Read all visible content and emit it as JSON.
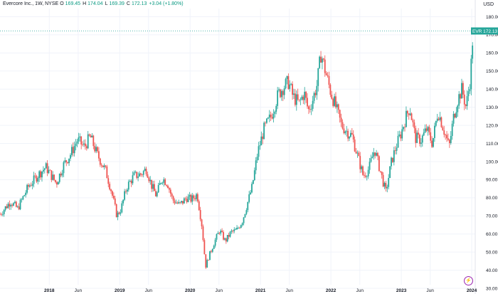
{
  "header": {
    "symbol_info": "Evercore Inc., 1W, NYSE",
    "open_label": "O",
    "open": "169.45",
    "high_label": "H",
    "high": "174.04",
    "low_label": "L",
    "low": "169.39",
    "close_label": "C",
    "close": "172.13",
    "change": "+3.04 (+1.80%)"
  },
  "currency": "USD",
  "price_tag": {
    "ticker": "EVR",
    "price": "172.13"
  },
  "colors": {
    "up": "#26a69a",
    "down": "#ef5350",
    "grid": "#f0f3fa",
    "tag": "#26a69a",
    "line": "#26a69a"
  },
  "icons": {
    "bottom_right": "lightning-icon"
  },
  "chart_data": {
    "type": "candlestick",
    "interval": "1W",
    "ylim": [
      30,
      180
    ],
    "yticks": [
      "30.00",
      "40.00",
      "50.00",
      "60.00",
      "70.00",
      "80.00",
      "90.00",
      "100.00",
      "110.00",
      "120.00",
      "130.00",
      "140.00",
      "150.00",
      "160.00",
      "170.00",
      "180.00"
    ],
    "xticks": [
      {
        "label": "2018",
        "t": 2018.0,
        "year": true
      },
      {
        "label": "Jun",
        "t": 2018.41,
        "year": false
      },
      {
        "label": "2019",
        "t": 2019.0,
        "year": true
      },
      {
        "label": "Jun",
        "t": 2019.41,
        "year": false
      },
      {
        "label": "2020",
        "t": 2020.0,
        "year": true
      },
      {
        "label": "Jun",
        "t": 2020.41,
        "year": false
      },
      {
        "label": "2021",
        "t": 2021.0,
        "year": true
      },
      {
        "label": "Jun",
        "t": 2021.41,
        "year": false
      },
      {
        "label": "2022",
        "t": 2022.0,
        "year": true
      },
      {
        "label": "Jun",
        "t": 2022.41,
        "year": false
      },
      {
        "label": "2023",
        "t": 2023.0,
        "year": true
      },
      {
        "label": "Jun",
        "t": 2023.41,
        "year": false
      },
      {
        "label": "2024",
        "t": 2024.0,
        "year": true
      }
    ],
    "xrange": [
      2017.3,
      2024.05
    ],
    "path": [
      [
        2017.3,
        71
      ],
      [
        2017.45,
        78
      ],
      [
        2017.55,
        74
      ],
      [
        2017.7,
        86
      ],
      [
        2017.85,
        93
      ],
      [
        2017.95,
        97
      ],
      [
        2018.1,
        88
      ],
      [
        2018.2,
        98
      ],
      [
        2018.3,
        104
      ],
      [
        2018.4,
        112
      ],
      [
        2018.5,
        108
      ],
      [
        2018.58,
        114
      ],
      [
        2018.68,
        104
      ],
      [
        2018.8,
        95
      ],
      [
        2018.88,
        84
      ],
      [
        2018.96,
        70
      ],
      [
        2019.02,
        74
      ],
      [
        2019.1,
        86
      ],
      [
        2019.2,
        92
      ],
      [
        2019.3,
        93
      ],
      [
        2019.38,
        96
      ],
      [
        2019.45,
        87
      ],
      [
        2019.52,
        81
      ],
      [
        2019.6,
        91
      ],
      [
        2019.68,
        88
      ],
      [
        2019.75,
        79
      ],
      [
        2019.85,
        76
      ],
      [
        2019.95,
        80
      ],
      [
        2020.02,
        79
      ],
      [
        2020.1,
        82
      ],
      [
        2020.17,
        64
      ],
      [
        2020.22,
        42
      ],
      [
        2020.27,
        48
      ],
      [
        2020.35,
        56
      ],
      [
        2020.42,
        62
      ],
      [
        2020.5,
        56
      ],
      [
        2020.58,
        61
      ],
      [
        2020.66,
        62
      ],
      [
        2020.74,
        67
      ],
      [
        2020.8,
        75
      ],
      [
        2020.88,
        86
      ],
      [
        2020.96,
        105
      ],
      [
        2021.05,
        118
      ],
      [
        2021.15,
        125
      ],
      [
        2021.25,
        137
      ],
      [
        2021.32,
        141
      ],
      [
        2021.4,
        144
      ],
      [
        2021.46,
        136
      ],
      [
        2021.55,
        132
      ],
      [
        2021.62,
        138
      ],
      [
        2021.68,
        128
      ],
      [
        2021.74,
        134
      ],
      [
        2021.8,
        142
      ],
      [
        2021.86,
        160
      ],
      [
        2021.92,
        150
      ],
      [
        2022.0,
        138
      ],
      [
        2022.08,
        129
      ],
      [
        2022.15,
        120
      ],
      [
        2022.22,
        117
      ],
      [
        2022.3,
        114
      ],
      [
        2022.38,
        103
      ],
      [
        2022.46,
        92
      ],
      [
        2022.54,
        96
      ],
      [
        2022.62,
        107
      ],
      [
        2022.7,
        95
      ],
      [
        2022.78,
        83
      ],
      [
        2022.86,
        100
      ],
      [
        2022.94,
        110
      ],
      [
        2023.0,
        116
      ],
      [
        2023.06,
        124
      ],
      [
        2023.12,
        130
      ],
      [
        2023.2,
        113
      ],
      [
        2023.28,
        112
      ],
      [
        2023.36,
        118
      ],
      [
        2023.44,
        110
      ],
      [
        2023.52,
        128
      ],
      [
        2023.6,
        118
      ],
      [
        2023.68,
        108
      ],
      [
        2023.74,
        124
      ],
      [
        2023.8,
        134
      ],
      [
        2023.86,
        140
      ],
      [
        2023.92,
        130
      ],
      [
        2023.98,
        146
      ],
      [
        2024.02,
        172.13
      ]
    ]
  }
}
